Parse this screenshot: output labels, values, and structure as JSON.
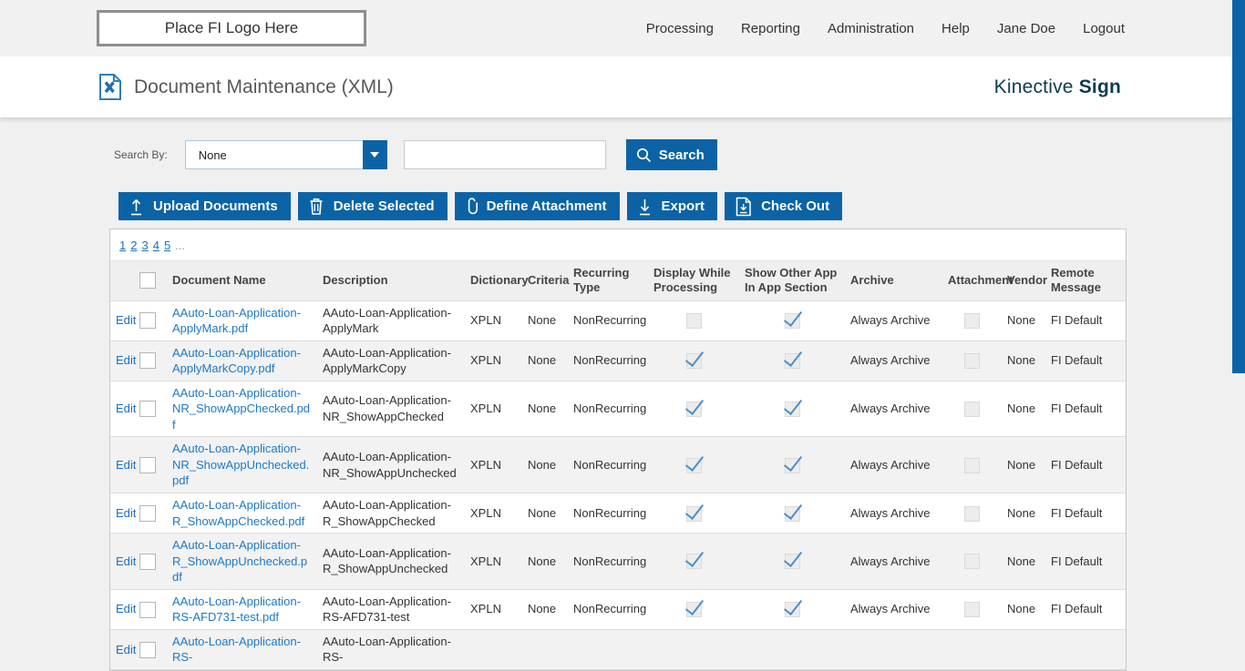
{
  "header": {
    "logo_placeholder": "Place FI Logo Here",
    "nav": [
      {
        "label": "Processing"
      },
      {
        "label": "Reporting"
      },
      {
        "label": "Administration"
      },
      {
        "label": "Help"
      },
      {
        "label": "Jane Doe"
      },
      {
        "label": "Logout"
      }
    ]
  },
  "title_bar": {
    "title": "Document Maintenance (XML)",
    "brand_regular": "Kinective ",
    "brand_bold": "Sign"
  },
  "search": {
    "label": "Search By:",
    "dropdown_value": "None",
    "input_value": "",
    "button_label": "Search"
  },
  "toolbar": {
    "buttons": [
      {
        "label": "Upload Documents",
        "icon": "upload-icon"
      },
      {
        "label": "Delete Selected",
        "icon": "trash-icon"
      },
      {
        "label": "Define Attachment",
        "icon": "paperclip-icon"
      },
      {
        "label": "Export",
        "icon": "download-icon"
      },
      {
        "label": "Check Out",
        "icon": "checkout-document-icon"
      }
    ]
  },
  "pagination": {
    "pages": [
      "1",
      "2",
      "3",
      "4",
      "5"
    ],
    "ellipsis": "..."
  },
  "table": {
    "edit_label": "Edit",
    "columns": [
      "Document Name",
      "Description",
      "Dictionary",
      "Criteria",
      "Recurring Type",
      "Display While Processing",
      "Show Other App In App Section",
      "Archive",
      "Attachment",
      "Vendor",
      "Remote Message"
    ],
    "rows": [
      {
        "document_name": "AAuto-Loan-Application-ApplyMark.pdf",
        "description": "AAuto-Loan-Application-ApplyMark",
        "dictionary": "XPLN",
        "criteria": "None",
        "recurring_type": "NonRecurring",
        "display_while_processing": false,
        "show_other_app": true,
        "archive": "Always Archive",
        "attachment": false,
        "vendor": "None",
        "remote_message": "FI Default"
      },
      {
        "document_name": "AAuto-Loan-Application-ApplyMarkCopy.pdf",
        "description": "AAuto-Loan-Application-ApplyMarkCopy",
        "dictionary": "XPLN",
        "criteria": "None",
        "recurring_type": "NonRecurring",
        "display_while_processing": true,
        "show_other_app": true,
        "archive": "Always Archive",
        "attachment": false,
        "vendor": "None",
        "remote_message": "FI Default"
      },
      {
        "document_name": "AAuto-Loan-Application-NR_ShowAppChecked.pdf",
        "description": "AAuto-Loan-Application-NR_ShowAppChecked",
        "dictionary": "XPLN",
        "criteria": "None",
        "recurring_type": "NonRecurring",
        "display_while_processing": true,
        "show_other_app": true,
        "archive": "Always Archive",
        "attachment": false,
        "vendor": "None",
        "remote_message": "FI Default"
      },
      {
        "document_name": "AAuto-Loan-Application-NR_ShowAppUnchecked.pdf",
        "description": "AAuto-Loan-Application-NR_ShowAppUnchecked",
        "dictionary": "XPLN",
        "criteria": "None",
        "recurring_type": "NonRecurring",
        "display_while_processing": true,
        "show_other_app": true,
        "archive": "Always Archive",
        "attachment": false,
        "vendor": "None",
        "remote_message": "FI Default"
      },
      {
        "document_name": "AAuto-Loan-Application-R_ShowAppChecked.pdf",
        "description": "AAuto-Loan-Application-R_ShowAppChecked",
        "dictionary": "XPLN",
        "criteria": "None",
        "recurring_type": "NonRecurring",
        "display_while_processing": true,
        "show_other_app": true,
        "archive": "Always Archive",
        "attachment": false,
        "vendor": "None",
        "remote_message": "FI Default"
      },
      {
        "document_name": "AAuto-Loan-Application-R_ShowAppUnchecked.pdf",
        "description": "AAuto-Loan-Application-R_ShowAppUnchecked",
        "dictionary": "XPLN",
        "criteria": "None",
        "recurring_type": "NonRecurring",
        "display_while_processing": true,
        "show_other_app": true,
        "archive": "Always Archive",
        "attachment": false,
        "vendor": "None",
        "remote_message": "FI Default"
      },
      {
        "document_name": "AAuto-Loan-Application-RS-AFD731-test.pdf",
        "description": "AAuto-Loan-Application-RS-AFD731-test",
        "dictionary": "XPLN",
        "criteria": "None",
        "recurring_type": "NonRecurring",
        "display_while_processing": true,
        "show_other_app": true,
        "archive": "Always Archive",
        "attachment": false,
        "vendor": "None",
        "remote_message": "FI Default"
      },
      {
        "document_name": "AAuto-Loan-Application-RS-",
        "description": "AAuto-Loan-Application-RS-",
        "dictionary": "",
        "criteria": "",
        "recurring_type": "",
        "display_while_processing": null,
        "show_other_app": null,
        "archive": "",
        "attachment": null,
        "vendor": "",
        "remote_message": "",
        "partial": true
      }
    ]
  },
  "colors": {
    "accent_blue": "#0b63a5",
    "link_blue": "#1d78c6",
    "brand_teal": "#0e3b4d",
    "header_row_gray": "#efefef",
    "stripe_gray": "#f2f2f2",
    "check_blue": "#4b8fcc"
  }
}
